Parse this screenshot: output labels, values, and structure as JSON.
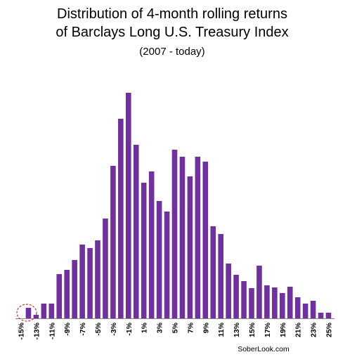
{
  "chart_data": {
    "type": "bar",
    "title": "Distribution of 4-month rolling  returns",
    "title_line2": "of Barclays Long U.S. Treasury Index",
    "subtitle": "(2007 - today)",
    "source": "SoberLook.com",
    "color": "#7030a0",
    "categories": [
      "-15%",
      null,
      "-13%",
      null,
      "-11%",
      null,
      "-9%",
      null,
      "-7%",
      null,
      "-5%",
      null,
      "-3%",
      null,
      "-1%",
      null,
      "1%",
      null,
      "3%",
      null,
      "5%",
      null,
      "7%",
      null,
      "9%",
      null,
      "11%",
      null,
      "13%",
      null,
      "15%",
      null,
      "17%",
      null,
      "19%",
      null,
      "21%",
      null,
      "23%",
      null,
      "25%"
    ],
    "values": [
      0,
      15,
      5,
      21,
      21,
      63,
      69,
      83,
      105,
      100,
      111,
      142,
      217,
      284,
      321,
      247,
      193,
      209,
      167,
      152,
      240,
      230,
      202,
      230,
      223,
      131,
      120,
      78,
      62,
      53,
      43,
      75,
      47,
      44,
      36,
      45,
      30,
      21,
      25,
      8,
      8
    ]
  }
}
